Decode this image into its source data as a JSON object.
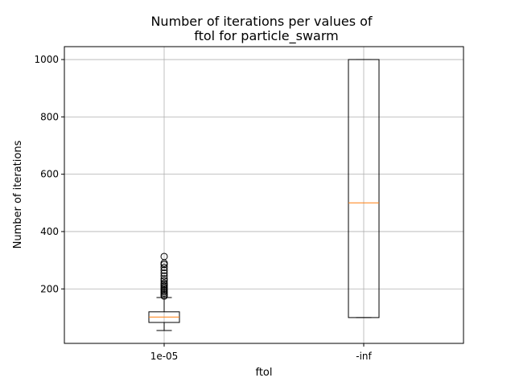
{
  "chart_data": {
    "type": "box",
    "title": [
      "Number of iterations per values of",
      "ftol for particle_swarm"
    ],
    "xlabel": "ftol",
    "ylabel": "Number of iterations",
    "categories": [
      "1e-05",
      "-inf"
    ],
    "ylim": [
      10,
      1045
    ],
    "yticks": [
      200,
      400,
      600,
      800,
      1000
    ],
    "grid": true,
    "boxes": [
      {
        "category": "1e-05",
        "whisker_low": 55,
        "q1": 83,
        "median": 102,
        "q3": 120,
        "whisker_high": 170,
        "outliers": [
          175,
          180,
          185,
          190,
          195,
          200,
          205,
          210,
          215,
          220,
          228,
          235,
          245,
          255,
          265,
          275,
          285,
          290,
          313
        ]
      },
      {
        "category": "-inf",
        "whisker_low": 100,
        "q1": 100,
        "median": 500,
        "q3": 1000,
        "whisker_high": 1000,
        "outliers": []
      }
    ],
    "colors": {
      "box": "#000000",
      "median": "#ff7f0e",
      "grid": "#b0b0b0"
    }
  }
}
